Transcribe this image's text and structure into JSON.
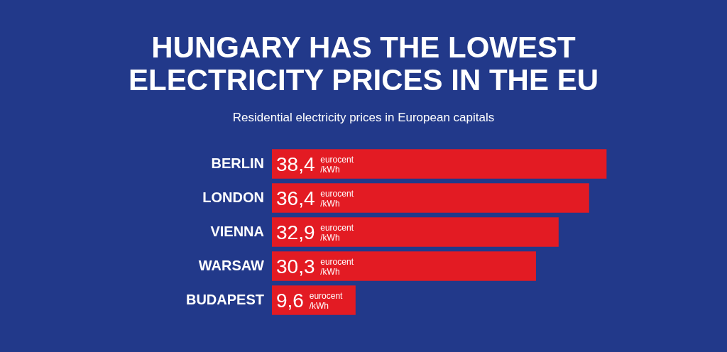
{
  "chart_data": {
    "type": "bar",
    "orientation": "horizontal",
    "title": "HUNGARY HAS THE LOWEST ELECTRICITY PRICES IN THE EU",
    "subtitle": "Residential electricity prices in European capitals",
    "categories": [
      "BERLIN",
      "LONDON",
      "VIENNA",
      "WARSAW",
      "BUDAPEST"
    ],
    "values": [
      38.4,
      36.4,
      32.9,
      30.3,
      9.6
    ],
    "value_labels": [
      "38,4 eurocent/kWh",
      "36,4 eurocent/kWh",
      "32,9 eurocent/kWh",
      "30,3 eurocent/kWh",
      "9,6 eurocent/kWh"
    ],
    "color": "#e31b23",
    "tick_labels": "y"
  }
}
